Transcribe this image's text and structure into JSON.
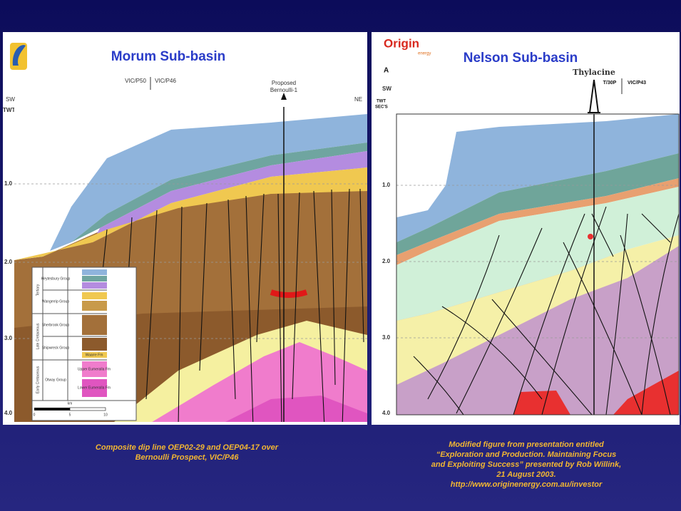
{
  "slide": {
    "left": {
      "title": "Morum Sub-basin",
      "direction_left": "SW",
      "direction_right": "NE",
      "axis_label": "TWT",
      "permits": [
        "VIC/P50",
        "VIC/P46"
      ],
      "well": [
        "Proposed",
        "Bernoulli-1"
      ],
      "depth_labels": [
        "1.0",
        "2.0",
        "3.0",
        "4.0"
      ],
      "legend": {
        "eras": [
          "Tertiary",
          "Late Cretaceous",
          "Early Cretaceous"
        ],
        "groups": [
          "Heytesbury Group",
          "Wangerrip Group",
          "Sherbrook Group",
          "Shipwreck Group",
          "Otway Group"
        ],
        "formations": [
          "Waarre Fm",
          "Upper Eumeralla Fm",
          "Lower Eumeralla Fm"
        ]
      },
      "scale": {
        "unit": "km",
        "ticks": [
          "0",
          "5",
          "10"
        ]
      },
      "caption": [
        "Composite dip line OEP02-29 and OEP04-17 over",
        "Bernoulli Prospect, VIC/P46"
      ]
    },
    "right": {
      "logo": "Origin",
      "logo_sub": "energy",
      "title": "Nelson Sub-basin",
      "panel_letter": "A",
      "direction_left": "SW",
      "axis_label": [
        "TWT",
        "SEC'S"
      ],
      "well": "Thylacine",
      "permits": [
        "T/30P",
        "VIC/P43"
      ],
      "depth_labels": [
        "1.0",
        "2.0",
        "3.0",
        "4.0"
      ],
      "caption": [
        "Modified figure from presentation entitled",
        "“Exploration and Production. Maintaining Focus",
        "and Exploiting Success” presented by Rob Willink,",
        "21 August 2003.",
        "http://www.originenergy.com.au/investor"
      ]
    }
  }
}
